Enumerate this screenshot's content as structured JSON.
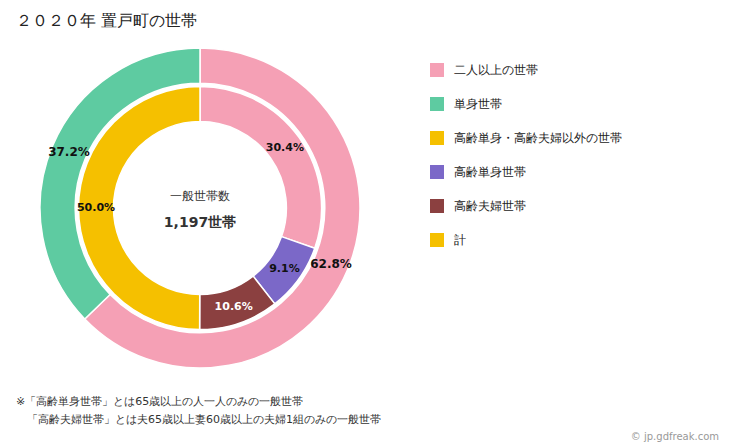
{
  "chart_data": {
    "type": "donut",
    "title": "２０２０年 置戸町の世帯",
    "center_text": [
      "一般世帯数",
      "1,197世帯"
    ],
    "series": [
      {
        "values": [
          62.8,
          37.2
        ],
        "value_labels": [
          "62.8%",
          "37.2%"
        ],
        "colors": [
          "#f5a0b5",
          "#5ecba1"
        ]
      },
      {
        "values": [
          30.4,
          9.1,
          10.6,
          50.0
        ],
        "value_labels": [
          "30.4%",
          "9.1%",
          "10.6%",
          "50.0%"
        ],
        "colors": [
          "#f5a0b5",
          "#7b68c8",
          "#8b4040",
          "#f5c000"
        ]
      }
    ],
    "data_labels": true,
    "legend_labels": [
      "二人以上の世帯",
      "単身世帯",
      "高齢単身・高齢夫婦以外の世帯",
      "高齢単身世帯",
      "高齢夫婦世帯",
      "計"
    ],
    "legend_colors": [
      "#f5a0b5",
      "#5ecba1",
      "#f5c000",
      "#7b68c8",
      "#8b4040",
      "#f5c000"
    ],
    "notes": [
      "※「高齢単身世帯」とは65歳以上の人一人のみの一般世帯",
      "　「高齢夫婦世帯」とは夫65歳以上妻60歳以上の夫婦1組のみの一般世帯"
    ],
    "credit": "© jp.gdfreak.com"
  }
}
